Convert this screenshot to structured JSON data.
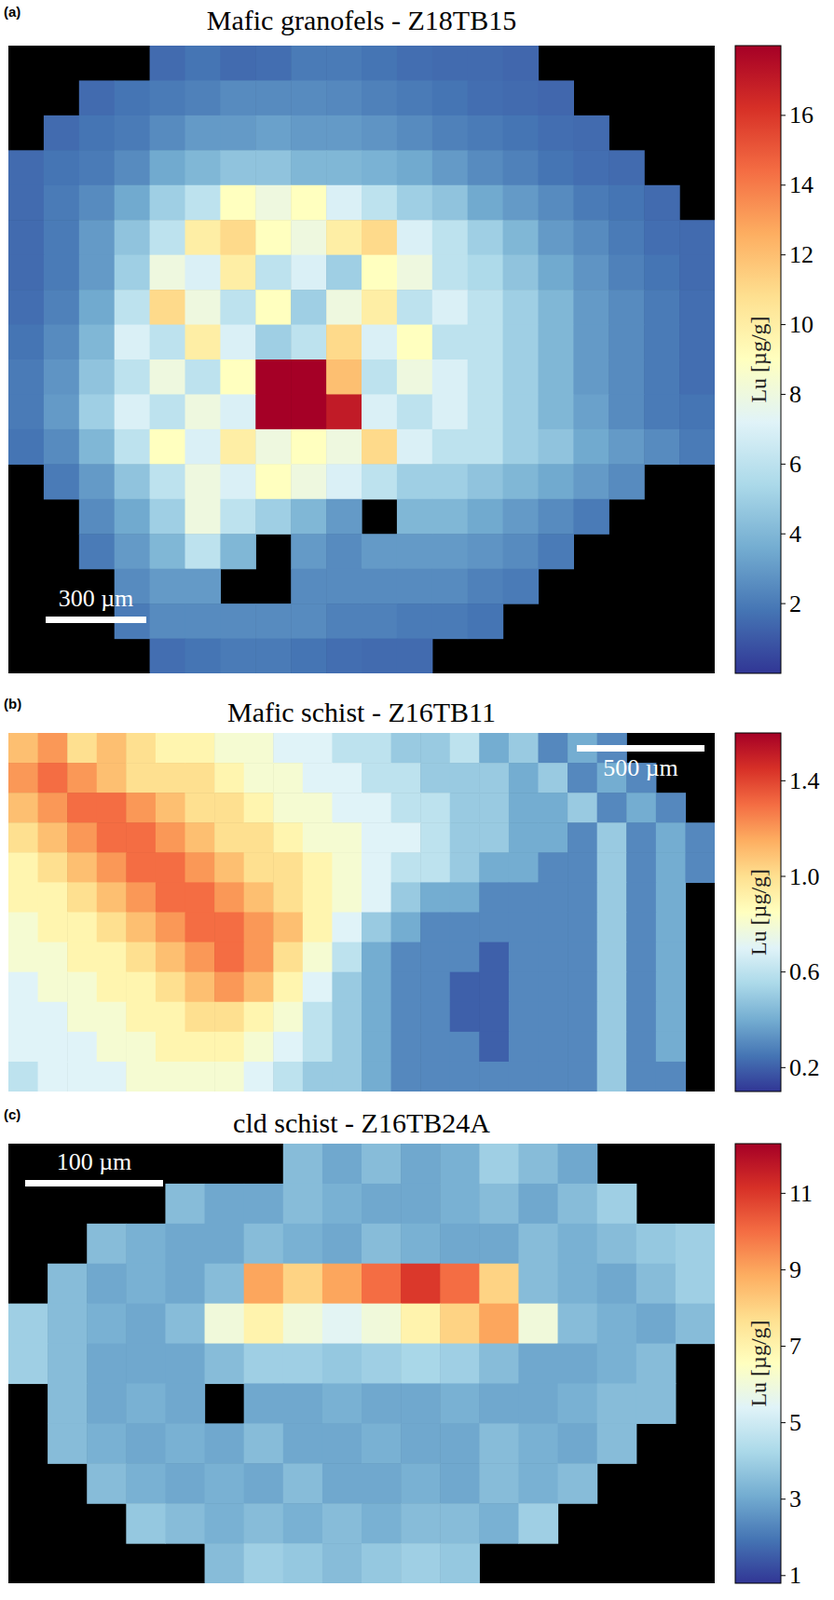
{
  "chart_data": [
    {
      "type": "heatmap",
      "panel": "(a)",
      "title": "Mafic granofels - Z18TB15",
      "scale_bar": "300 µm",
      "tick_labels": false,
      "colorbar_label": "Lu [µg/g]",
      "colorbar_range": [
        0,
        18
      ],
      "colorbar_ticks": [
        2,
        4,
        6,
        8,
        10,
        12,
        14,
        16
      ],
      "cells": [
        [
          null,
          null,
          null,
          null,
          1.5,
          1.8,
          1.5,
          1.6,
          2,
          2,
          1.8,
          1.6,
          1.5,
          1.5,
          1.4,
          null,
          null,
          null,
          null,
          null
        ],
        [
          null,
          null,
          1.5,
          1.8,
          2,
          2.2,
          2.5,
          2.5,
          2.5,
          2.4,
          2.2,
          2,
          1.8,
          1.6,
          1.5,
          1.4,
          null,
          null,
          null,
          null
        ],
        [
          null,
          1.5,
          1.8,
          2,
          2.5,
          3,
          3,
          3.2,
          3,
          3,
          2.8,
          2.5,
          2.2,
          2,
          1.8,
          1.6,
          1.5,
          null,
          null,
          null
        ],
        [
          1.5,
          1.8,
          2,
          2.5,
          3.5,
          4,
          4.5,
          4.5,
          4,
          4,
          3.8,
          3.5,
          3,
          2.5,
          2.2,
          1.8,
          1.6,
          1.5,
          null,
          null
        ],
        [
          1.5,
          2,
          2.5,
          3.5,
          5,
          6,
          9,
          8,
          9,
          7,
          6,
          5,
          4.5,
          3.5,
          3,
          2.5,
          2,
          1.8,
          1.5,
          null
        ],
        [
          1.5,
          2,
          3,
          4.5,
          6,
          10,
          11,
          9,
          8,
          10,
          11,
          7,
          6,
          5,
          4,
          3,
          2.5,
          2,
          1.6,
          1.5
        ],
        [
          1.5,
          2,
          3,
          5,
          8,
          7,
          10,
          6,
          7,
          5,
          9,
          8,
          6,
          5.5,
          4.5,
          3.5,
          2.8,
          2.2,
          1.8,
          1.5
        ],
        [
          1.6,
          2.2,
          3.5,
          6,
          11,
          8,
          6,
          9,
          5,
          8,
          10,
          6,
          7,
          6,
          5,
          4,
          3,
          2.5,
          2,
          1.6
        ],
        [
          1.8,
          2.5,
          4,
          7,
          6,
          10,
          7,
          5,
          6,
          11,
          7,
          9,
          6,
          6,
          5,
          4,
          3,
          2.5,
          2,
          1.6
        ],
        [
          2,
          2.8,
          4.5,
          6,
          8,
          6,
          9,
          18,
          18,
          12,
          6,
          8,
          7,
          6,
          5,
          4,
          3,
          2.5,
          2,
          1.6
        ],
        [
          2,
          3,
          5,
          7,
          6,
          8,
          7,
          18,
          18,
          17,
          7,
          6,
          7,
          6,
          5,
          4,
          3.2,
          2.5,
          2,
          1.8
        ],
        [
          1.8,
          2.5,
          4,
          6,
          9,
          7,
          10,
          8,
          9,
          8,
          11,
          7,
          6,
          6,
          5,
          4.5,
          3.5,
          3,
          2.5,
          2
        ],
        [
          null,
          2,
          3,
          4.5,
          6,
          8,
          7,
          9,
          8,
          7,
          6,
          5,
          5,
          4.5,
          4,
          3.5,
          3,
          2.5,
          null,
          null
        ],
        [
          null,
          null,
          2.5,
          3.5,
          5,
          8,
          6,
          5,
          4,
          3,
          null,
          4,
          4,
          3.5,
          3,
          2.5,
          2,
          null,
          null,
          null
        ],
        [
          null,
          null,
          2,
          3,
          4,
          6,
          4,
          null,
          3,
          2.5,
          3,
          3,
          3,
          2.8,
          2.5,
          2,
          null,
          null,
          null,
          null
        ],
        [
          null,
          null,
          null,
          2.5,
          3,
          3,
          null,
          null,
          2.5,
          2.5,
          2.5,
          2.5,
          2.5,
          2.2,
          2,
          null,
          null,
          null,
          null,
          null
        ],
        [
          null,
          null,
          null,
          2,
          2.5,
          2.5,
          2.5,
          2.5,
          2.5,
          2.2,
          2.2,
          2,
          2,
          1.8,
          null,
          null,
          null,
          null,
          null,
          null
        ],
        [
          null,
          null,
          null,
          null,
          1.6,
          1.8,
          2,
          2,
          1.8,
          1.6,
          1.5,
          1.5,
          null,
          null,
          null,
          null,
          null,
          null,
          null,
          null
        ]
      ]
    },
    {
      "type": "heatmap",
      "panel": "(b)",
      "title": "Mafic schist - Z16TB11",
      "scale_bar": "500 µm",
      "tick_labels": false,
      "colorbar_label": "Lu [µg/g]",
      "colorbar_range": [
        0.1,
        1.6
      ],
      "colorbar_ticks": [
        0.2,
        0.6,
        {
          "value": 1,
          "label": "1.0"
        },
        1.4
      ],
      "cells": [
        [
          1.1,
          1.2,
          1.0,
          1.1,
          1.0,
          0.9,
          0.9,
          0.8,
          0.8,
          0.7,
          0.7,
          0.6,
          0.6,
          0.5,
          0.5,
          0.6,
          0.4,
          0.5,
          0.3,
          0.4,
          0.3,
          null,
          null,
          null
        ],
        [
          1.2,
          1.3,
          1.2,
          1.1,
          1.0,
          1.0,
          1.0,
          0.9,
          0.8,
          0.8,
          0.7,
          0.7,
          0.6,
          0.6,
          0.5,
          0.5,
          0.5,
          0.4,
          0.5,
          0.3,
          0.4,
          0.3,
          null,
          null
        ],
        [
          1.1,
          1.2,
          1.3,
          1.3,
          1.2,
          1.1,
          1.0,
          1.0,
          0.9,
          0.8,
          0.8,
          0.7,
          0.7,
          0.6,
          0.6,
          0.5,
          0.5,
          0.4,
          0.4,
          0.5,
          0.3,
          0.4,
          0.3,
          null
        ],
        [
          1.0,
          1.1,
          1.2,
          1.3,
          1.3,
          1.2,
          1.1,
          1.0,
          1.0,
          0.9,
          0.8,
          0.8,
          0.7,
          0.7,
          0.6,
          0.5,
          0.5,
          0.4,
          0.4,
          0.3,
          0.5,
          0.3,
          0.4,
          0.3
        ],
        [
          0.9,
          1.0,
          1.1,
          1.2,
          1.3,
          1.3,
          1.2,
          1.1,
          1.0,
          1.0,
          0.9,
          0.8,
          0.7,
          0.6,
          0.6,
          0.5,
          0.4,
          0.4,
          0.3,
          0.3,
          0.5,
          0.3,
          0.4,
          0.3
        ],
        [
          0.9,
          0.9,
          1.0,
          1.1,
          1.2,
          1.3,
          1.3,
          1.2,
          1.1,
          1.0,
          0.9,
          0.8,
          0.7,
          0.5,
          0.4,
          0.4,
          0.3,
          0.3,
          0.3,
          0.3,
          0.5,
          0.3,
          0.4,
          null
        ],
        [
          0.8,
          0.9,
          0.9,
          1.0,
          1.1,
          1.2,
          1.3,
          1.3,
          1.2,
          1.1,
          0.9,
          0.7,
          0.5,
          0.4,
          0.3,
          0.3,
          0.3,
          0.3,
          0.3,
          0.3,
          0.5,
          0.3,
          0.4,
          null
        ],
        [
          0.8,
          0.8,
          0.9,
          0.9,
          1.0,
          1.1,
          1.2,
          1.3,
          1.2,
          1.0,
          0.8,
          0.6,
          0.4,
          0.3,
          0.3,
          0.3,
          0.2,
          0.3,
          0.3,
          0.3,
          0.5,
          0.3,
          0.4,
          null
        ],
        [
          0.7,
          0.8,
          0.8,
          0.9,
          0.9,
          1.0,
          1.1,
          1.2,
          1.1,
          0.9,
          0.7,
          0.5,
          0.4,
          0.3,
          0.3,
          0.2,
          0.2,
          0.3,
          0.3,
          0.3,
          0.5,
          0.3,
          0.4,
          null
        ],
        [
          0.7,
          0.7,
          0.8,
          0.8,
          0.9,
          0.9,
          1.0,
          1.0,
          0.9,
          0.8,
          0.6,
          0.5,
          0.4,
          0.3,
          0.3,
          0.2,
          0.2,
          0.3,
          0.3,
          0.3,
          0.5,
          0.3,
          0.4,
          null
        ],
        [
          0.7,
          0.7,
          0.7,
          0.8,
          0.8,
          0.9,
          0.9,
          0.9,
          0.8,
          0.7,
          0.6,
          0.5,
          0.4,
          0.3,
          0.3,
          0.3,
          0.2,
          0.3,
          0.3,
          0.3,
          0.5,
          0.3,
          0.4,
          null
        ],
        [
          0.6,
          0.7,
          0.7,
          0.7,
          0.8,
          0.8,
          0.8,
          0.8,
          0.7,
          0.6,
          0.5,
          0.5,
          0.4,
          0.3,
          0.3,
          0.3,
          0.3,
          0.3,
          0.3,
          0.3,
          0.5,
          0.3,
          0.3,
          null
        ]
      ]
    },
    {
      "type": "heatmap",
      "panel": "(c)",
      "title": "cld schist - Z16TB24A",
      "scale_bar": "100 µm",
      "tick_labels": false,
      "colorbar_label": "Lu [µg/g]",
      "colorbar_range": [
        0.8,
        12.3
      ],
      "colorbar_ticks": [
        1,
        3,
        5,
        7,
        9,
        11
      ],
      "cells": [
        [
          null,
          null,
          null,
          null,
          null,
          null,
          null,
          3.5,
          3,
          3.5,
          3,
          3.2,
          4,
          3.5,
          3,
          null,
          null,
          null
        ],
        [
          null,
          null,
          null,
          null,
          3.5,
          3,
          3,
          3.5,
          3.2,
          3,
          3,
          3.2,
          3.5,
          3,
          3.5,
          4,
          null,
          null
        ],
        [
          null,
          null,
          3.5,
          3.2,
          3,
          3,
          3.5,
          3.2,
          3,
          3.5,
          3.2,
          3,
          3,
          3.5,
          3.2,
          3.5,
          3.8,
          4
        ],
        [
          null,
          3.5,
          3,
          3.2,
          3,
          3.5,
          9,
          8,
          9,
          10,
          11,
          10,
          8,
          3.5,
          3.2,
          3,
          3.5,
          4
        ],
        [
          4,
          3.5,
          3.2,
          3,
          3.5,
          6,
          7,
          6,
          5.5,
          6,
          7,
          8,
          9,
          6,
          3.5,
          3.2,
          3,
          3.5
        ],
        [
          4,
          3.5,
          3,
          3,
          3,
          3.5,
          4,
          4,
          3.8,
          4,
          4.2,
          4,
          3.5,
          3,
          3,
          3.2,
          3.5,
          null
        ],
        [
          null,
          3.5,
          3,
          3.2,
          3,
          null,
          3,
          3,
          3.2,
          3,
          3,
          3.2,
          3,
          3,
          3.2,
          3.5,
          3.5,
          null
        ],
        [
          null,
          3.5,
          3.2,
          3,
          3.2,
          3,
          3.5,
          3,
          3,
          3.2,
          3,
          3,
          3.5,
          3.2,
          3,
          3.5,
          null,
          null
        ],
        [
          null,
          null,
          3.5,
          3.2,
          3,
          3.2,
          3,
          3.5,
          3,
          3,
          3.2,
          3,
          3.5,
          3.2,
          3.5,
          null,
          null,
          null
        ],
        [
          null,
          null,
          null,
          3.8,
          3.5,
          3.2,
          3.5,
          3.2,
          3.5,
          3.2,
          3.5,
          3.5,
          3.2,
          4,
          null,
          null,
          null,
          null
        ],
        [
          null,
          null,
          null,
          null,
          null,
          3.5,
          4,
          3.8,
          3.5,
          3.8,
          4,
          3.8,
          null,
          null,
          null,
          null,
          null,
          null
        ]
      ]
    }
  ]
}
